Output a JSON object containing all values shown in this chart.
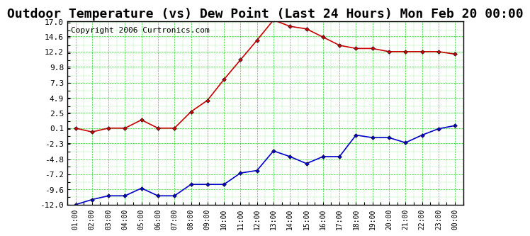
{
  "title": "Outdoor Temperature (vs) Dew Point (Last 24 Hours) Mon Feb 20 00:00",
  "copyright": "Copyright 2006 Curtronics.com",
  "x_labels": [
    "01:00",
    "02:00",
    "03:00",
    "04:00",
    "05:00",
    "06:00",
    "07:00",
    "08:00",
    "09:00",
    "10:00",
    "11:00",
    "12:00",
    "13:00",
    "14:00",
    "15:00",
    "16:00",
    "17:00",
    "18:00",
    "19:00",
    "20:00",
    "21:00",
    "22:00",
    "23:00",
    "00:00"
  ],
  "temp_red": [
    0.1,
    -0.5,
    0.1,
    0.1,
    1.4,
    0.1,
    0.1,
    2.7,
    4.5,
    7.8,
    10.9,
    14.0,
    17.2,
    16.2,
    15.8,
    14.5,
    13.2,
    12.7,
    12.7,
    12.2,
    12.2,
    12.2,
    12.2,
    11.8
  ],
  "dew_blue": [
    -12.0,
    -11.2,
    -10.6,
    -10.6,
    -9.4,
    -10.6,
    -10.6,
    -8.8,
    -8.8,
    -8.8,
    -7.0,
    -6.6,
    -3.5,
    -4.4,
    -5.5,
    -4.4,
    -4.4,
    -1.0,
    -1.4,
    -1.4,
    -2.2,
    -1.0,
    0.0,
    0.5
  ],
  "ylim_min": -12.0,
  "ylim_max": 17.0,
  "yticks": [
    17.0,
    14.6,
    12.2,
    9.8,
    7.3,
    4.9,
    2.5,
    0.1,
    -2.3,
    -4.8,
    -7.2,
    -9.6,
    -12.0
  ],
  "bg_color": "#ffffff",
  "plot_bg": "#ffffff",
  "grid_color": "#00cc00",
  "temp_color": "#cc0000",
  "dew_color": "#0000cc",
  "title_fontsize": 13,
  "copyright_fontsize": 8
}
